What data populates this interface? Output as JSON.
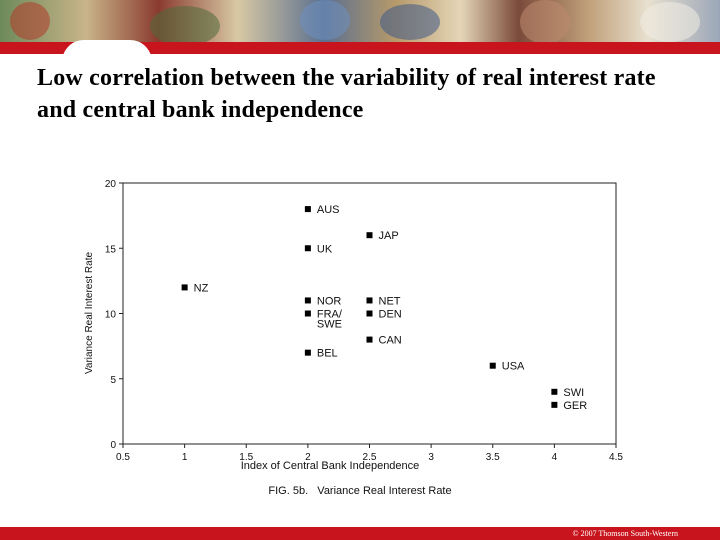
{
  "slide": {
    "title": "Low correlation between the variability of real interest rate and central bank independence",
    "copyright": "© 2007 Thomson South-Western"
  },
  "colors": {
    "accent": "#c8141c",
    "marker": "#000000"
  },
  "chart_data": {
    "type": "scatter",
    "title": "",
    "caption": "FIG. 5b.   Variance Real Interest Rate",
    "xlabel": "Index of Central Bank Independence",
    "ylabel": "Variance Real Interest Rate",
    "xlim": [
      0.5,
      4.5
    ],
    "ylim": [
      0,
      20
    ],
    "xticks": [
      "0.5",
      "1",
      "1.5",
      "2",
      "2.5",
      "3",
      "3.5",
      "4",
      "4.5"
    ],
    "yticks": [
      "0",
      "5",
      "10",
      "15",
      "20"
    ],
    "grid": false,
    "points": [
      {
        "label": "AUS",
        "x": 2,
        "y": 18
      },
      {
        "label": "UK",
        "x": 2,
        "y": 15
      },
      {
        "label": "NZ",
        "x": 1,
        "y": 12
      },
      {
        "label": "NOR",
        "x": 2,
        "y": 11
      },
      {
        "label": "FRA/ SWE",
        "x": 2,
        "y": 10
      },
      {
        "label": "BEL",
        "x": 2,
        "y": 7
      },
      {
        "label": "JAP",
        "x": 2.5,
        "y": 16
      },
      {
        "label": "NET",
        "x": 2.5,
        "y": 11
      },
      {
        "label": "DEN",
        "x": 2.5,
        "y": 10
      },
      {
        "label": "CAN",
        "x": 2.5,
        "y": 8
      },
      {
        "label": "USA",
        "x": 3.5,
        "y": 6
      },
      {
        "label": "SWI",
        "x": 4,
        "y": 4
      },
      {
        "label": "GER",
        "x": 4,
        "y": 3
      }
    ]
  }
}
